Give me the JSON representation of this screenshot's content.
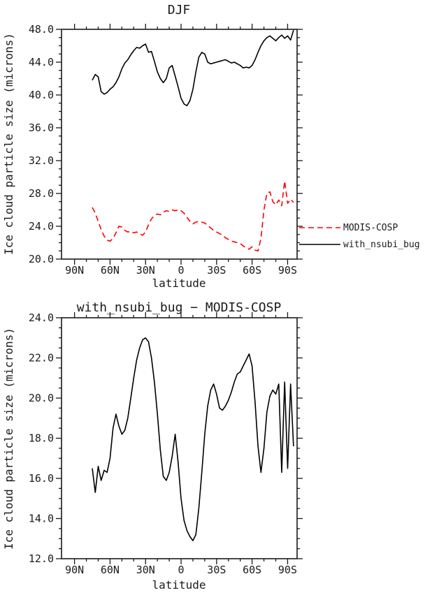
{
  "chart_data": [
    {
      "type": "line",
      "title": "DJF",
      "xlabel": "latitude",
      "ylabel": "Ice cloud particle size (microns)",
      "xlim": [
        101,
        -98
      ],
      "ylim": [
        20.0,
        48.0
      ],
      "y_major_step": 4.0,
      "y_minor_step": 1.0,
      "x_minor_step": 10,
      "grid": false,
      "legend_position": "right-outside",
      "x_major_ticks": [
        {
          "value": 90,
          "label": "90N"
        },
        {
          "value": 60,
          "label": "60N"
        },
        {
          "value": 30,
          "label": "30N"
        },
        {
          "value": 0,
          "label": "0"
        },
        {
          "value": -30,
          "label": "30S"
        },
        {
          "value": -60,
          "label": "60S"
        },
        {
          "value": -90,
          "label": "90S"
        }
      ],
      "x": [
        75,
        72.5,
        70,
        67.5,
        65,
        62.5,
        60,
        57.5,
        55,
        52.5,
        50,
        47.5,
        45,
        42.5,
        40,
        37.5,
        35,
        32.5,
        30,
        27.5,
        25,
        22.5,
        20,
        17.5,
        15,
        12.5,
        10,
        7.5,
        5,
        2.5,
        0,
        -2.5,
        -5,
        -7.5,
        -10,
        -12.5,
        -15,
        -17.5,
        -20,
        -22.5,
        -25,
        -27.5,
        -30,
        -32.5,
        -35,
        -37.5,
        -40,
        -42.5,
        -45,
        -47.5,
        -50,
        -52.5,
        -55,
        -57.5,
        -60,
        -62.5,
        -65,
        -67.5,
        -70,
        -72.5,
        -75,
        -77.5,
        -80,
        -82.5,
        -85,
        -87.5,
        -90,
        -92.5,
        -95
      ],
      "series": [
        {
          "name": "MODIS-COSP",
          "color": "#ff0000",
          "dash": true,
          "values": [
            26.3,
            25.6,
            24.6,
            23.6,
            22.8,
            22.3,
            22.2,
            22.5,
            23.2,
            24.0,
            23.9,
            23.5,
            23.3,
            23.4,
            23.2,
            23.3,
            23.1,
            22.9,
            23.3,
            24.2,
            24.9,
            25.3,
            25.5,
            25.4,
            25.7,
            25.9,
            25.8,
            26.0,
            25.9,
            26.0,
            25.9,
            25.6,
            25.1,
            24.6,
            24.3,
            24.5,
            24.6,
            24.5,
            24.4,
            24.1,
            23.8,
            23.5,
            23.3,
            23.1,
            22.9,
            22.6,
            22.4,
            22.2,
            22.1,
            22.0,
            21.9,
            21.6,
            21.4,
            21.2,
            21.5,
            21.1,
            21.0,
            22.5,
            26.0,
            28.0,
            28.2,
            27.0,
            26.6,
            27.2,
            26.5,
            29.5,
            26.8,
            27.3,
            26.9
          ]
        },
        {
          "name": "with_nsubi_bug",
          "color": "#000000",
          "dash": false,
          "values": [
            41.8,
            42.5,
            42.2,
            40.4,
            40.1,
            40.3,
            40.7,
            41.0,
            41.5,
            42.2,
            43.2,
            43.9,
            44.3,
            44.9,
            45.4,
            45.8,
            45.7,
            46.0,
            46.2,
            45.2,
            45.3,
            44.1,
            42.8,
            42.0,
            41.5,
            42.0,
            43.3,
            43.6,
            42.3,
            41.0,
            39.6,
            38.9,
            38.7,
            39.3,
            40.7,
            42.8,
            44.6,
            45.2,
            45.0,
            44.0,
            43.8,
            43.9,
            44.0,
            44.1,
            44.2,
            44.3,
            44.1,
            43.9,
            44.0,
            43.8,
            43.6,
            43.3,
            43.4,
            43.3,
            43.6,
            44.3,
            45.2,
            46.0,
            46.6,
            47.0,
            47.2,
            46.9,
            46.6,
            47.0,
            47.3,
            46.9,
            47.2,
            46.7,
            47.9
          ]
        }
      ],
      "legend_entries": [
        "MODIS-COSP",
        "with_nsubi_bug"
      ]
    },
    {
      "type": "line",
      "title": "with_nsubi_bug − MODIS-COSP",
      "xlabel": "latitude",
      "ylabel": "Ice cloud particle size (microns)",
      "xlim": [
        101,
        -98
      ],
      "ylim": [
        12.0,
        24.0
      ],
      "y_major_step": 2.0,
      "y_minor_step": 0.5,
      "x_minor_step": 10,
      "grid": false,
      "x_major_ticks": [
        {
          "value": 90,
          "label": "90N"
        },
        {
          "value": 60,
          "label": "60N"
        },
        {
          "value": 30,
          "label": "30N"
        },
        {
          "value": 0,
          "label": "0"
        },
        {
          "value": -30,
          "label": "30S"
        },
        {
          "value": -60,
          "label": "60S"
        },
        {
          "value": -90,
          "label": "90S"
        }
      ],
      "x": [
        75,
        72.5,
        70,
        67.5,
        65,
        62.5,
        60,
        57.5,
        55,
        52.5,
        50,
        47.5,
        45,
        42.5,
        40,
        37.5,
        35,
        32.5,
        30,
        27.5,
        25,
        22.5,
        20,
        17.5,
        15,
        12.5,
        10,
        7.5,
        5,
        2.5,
        0,
        -2.5,
        -5,
        -7.5,
        -10,
        -12.5,
        -15,
        -17.5,
        -20,
        -22.5,
        -25,
        -27.5,
        -30,
        -32.5,
        -35,
        -37.5,
        -40,
        -42.5,
        -45,
        -47.5,
        -50,
        -52.5,
        -55,
        -57.5,
        -60,
        -62.5,
        -65,
        -67.5,
        -70,
        -72.5,
        -75,
        -77.5,
        -80,
        -82.5,
        -85,
        -87.5,
        -90,
        -92.5,
        -95
      ],
      "series": [
        {
          "name": "with_nsubi_bug - MODIS-COSP",
          "color": "#000000",
          "dash": false,
          "values": [
            16.5,
            15.3,
            16.6,
            15.9,
            16.4,
            16.3,
            17.0,
            18.5,
            19.2,
            18.6,
            18.2,
            18.4,
            19.0,
            20.0,
            21.0,
            21.9,
            22.5,
            22.9,
            23.0,
            22.8,
            22.0,
            20.8,
            19.2,
            17.4,
            16.1,
            15.9,
            16.3,
            17.1,
            18.2,
            16.8,
            15.0,
            13.9,
            13.4,
            13.1,
            12.9,
            13.2,
            14.5,
            16.3,
            18.2,
            19.6,
            20.4,
            20.7,
            20.2,
            19.5,
            19.4,
            19.6,
            19.9,
            20.3,
            20.8,
            21.2,
            21.3,
            21.6,
            21.9,
            22.2,
            21.6,
            19.8,
            17.6,
            16.3,
            17.5,
            19.3,
            20.1,
            20.4,
            20.2,
            20.7,
            16.3,
            20.8,
            16.5,
            20.7,
            17.6
          ]
        }
      ]
    }
  ]
}
